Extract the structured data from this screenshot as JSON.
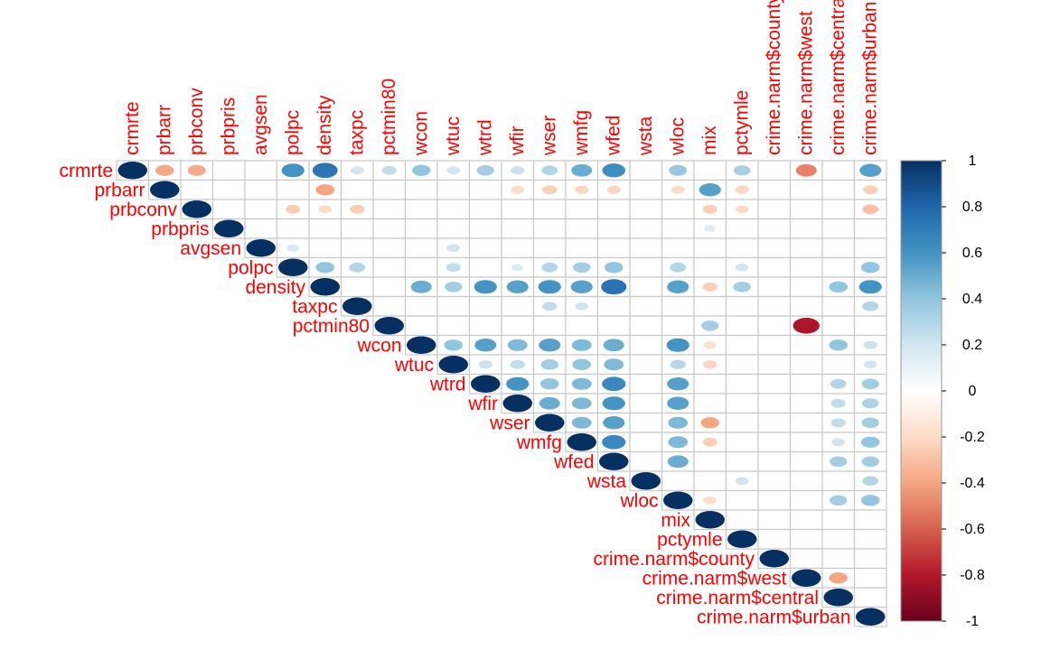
{
  "chart_data": {
    "type": "heatmap",
    "subtype": "correlation-upper-circles",
    "variables": [
      "crmrte",
      "prbarr",
      "prbconv",
      "prbpris",
      "avgsen",
      "polpc",
      "density",
      "taxpc",
      "pctmin80",
      "wcon",
      "wtuc",
      "wtrd",
      "wfir",
      "wser",
      "wmfg",
      "wfed",
      "wsta",
      "wloc",
      "mix",
      "pctymle",
      "crime.narm$county",
      "crime.narm$west",
      "crime.narm$central",
      "crime.narm$urban"
    ],
    "correlations": [
      [
        "crmrte",
        "prbarr",
        -0.39
      ],
      [
        "crmrte",
        "prbconv",
        -0.38
      ],
      [
        "crmrte",
        "polpc",
        0.6
      ],
      [
        "crmrte",
        "density",
        0.73
      ],
      [
        "crmrte",
        "taxpc",
        0.2
      ],
      [
        "crmrte",
        "pctmin80",
        0.25
      ],
      [
        "crmrte",
        "wcon",
        0.4
      ],
      [
        "crmrte",
        "wtuc",
        0.2
      ],
      [
        "crmrte",
        "wtrd",
        0.35
      ],
      [
        "crmrte",
        "wfir",
        0.22
      ],
      [
        "crmrte",
        "wser",
        0.3
      ],
      [
        "crmrte",
        "wmfg",
        0.5
      ],
      [
        "crmrte",
        "wfed",
        0.62
      ],
      [
        "crmrte",
        "wloc",
        0.38
      ],
      [
        "crmrte",
        "pctymle",
        0.33
      ],
      [
        "crmrte",
        "crime.narm$west",
        -0.5
      ],
      [
        "crmrte",
        "crime.narm$urban",
        0.55
      ],
      [
        "prbarr",
        "density",
        -0.4
      ],
      [
        "prbarr",
        "wfir",
        -0.2
      ],
      [
        "prbarr",
        "wser",
        -0.25
      ],
      [
        "prbarr",
        "wmfg",
        -0.22
      ],
      [
        "prbarr",
        "wfed",
        -0.22
      ],
      [
        "prbarr",
        "wloc",
        -0.2
      ],
      [
        "prbarr",
        "mix",
        0.55
      ],
      [
        "prbarr",
        "pctymle",
        -0.22
      ],
      [
        "prbarr",
        "crime.narm$urban",
        -0.25
      ],
      [
        "prbconv",
        "polpc",
        -0.25
      ],
      [
        "prbconv",
        "density",
        -0.2
      ],
      [
        "prbconv",
        "taxpc",
        -0.25
      ],
      [
        "prbconv",
        "mix",
        -0.25
      ],
      [
        "prbconv",
        "pctymle",
        -0.2
      ],
      [
        "prbconv",
        "crime.narm$urban",
        -0.3
      ],
      [
        "prbpris",
        "mix",
        0.15
      ],
      [
        "avgsen",
        "polpc",
        0.17
      ],
      [
        "avgsen",
        "wtuc",
        0.2
      ],
      [
        "polpc",
        "density",
        0.4
      ],
      [
        "polpc",
        "taxpc",
        0.3
      ],
      [
        "polpc",
        "wtuc",
        0.25
      ],
      [
        "polpc",
        "wfir",
        0.15
      ],
      [
        "polpc",
        "wser",
        0.3
      ],
      [
        "polpc",
        "wmfg",
        0.35
      ],
      [
        "polpc",
        "wfed",
        0.4
      ],
      [
        "polpc",
        "wloc",
        0.3
      ],
      [
        "polpc",
        "pctymle",
        0.2
      ],
      [
        "polpc",
        "crime.narm$urban",
        0.4
      ],
      [
        "density",
        "wcon",
        0.5
      ],
      [
        "density",
        "wtuc",
        0.35
      ],
      [
        "density",
        "wtrd",
        0.6
      ],
      [
        "density",
        "wfir",
        0.55
      ],
      [
        "density",
        "wser",
        0.6
      ],
      [
        "density",
        "wmfg",
        0.55
      ],
      [
        "density",
        "wfed",
        0.75
      ],
      [
        "density",
        "wloc",
        0.55
      ],
      [
        "density",
        "mix",
        -0.25
      ],
      [
        "density",
        "pctymle",
        0.35
      ],
      [
        "density",
        "crime.narm$central",
        0.4
      ],
      [
        "density",
        "crime.narm$urban",
        0.6
      ],
      [
        "taxpc",
        "wser",
        0.25
      ],
      [
        "taxpc",
        "wmfg",
        0.2
      ],
      [
        "taxpc",
        "crime.narm$urban",
        0.3
      ],
      [
        "pctmin80",
        "mix",
        0.35
      ],
      [
        "pctmin80",
        "crime.narm$west",
        -0.82
      ],
      [
        "wcon",
        "wtuc",
        0.4
      ],
      [
        "wcon",
        "wtrd",
        0.55
      ],
      [
        "wcon",
        "wfir",
        0.45
      ],
      [
        "wcon",
        "wser",
        0.55
      ],
      [
        "wcon",
        "wmfg",
        0.45
      ],
      [
        "wcon",
        "wfed",
        0.5
      ],
      [
        "wcon",
        "wloc",
        0.6
      ],
      [
        "wcon",
        "mix",
        -0.18
      ],
      [
        "wcon",
        "crime.narm$central",
        0.4
      ],
      [
        "wcon",
        "crime.narm$urban",
        0.22
      ],
      [
        "wtuc",
        "wtrd",
        0.22
      ],
      [
        "wtuc",
        "wfir",
        0.25
      ],
      [
        "wtuc",
        "wser",
        0.35
      ],
      [
        "wtuc",
        "wmfg",
        0.4
      ],
      [
        "wtuc",
        "wfed",
        0.45
      ],
      [
        "wtuc",
        "wloc",
        0.28
      ],
      [
        "wtuc",
        "mix",
        -0.22
      ],
      [
        "wtuc",
        "crime.narm$urban",
        0.2
      ],
      [
        "wtrd",
        "wfir",
        0.6
      ],
      [
        "wtrd",
        "wser",
        0.4
      ],
      [
        "wtrd",
        "wmfg",
        0.45
      ],
      [
        "wtrd",
        "wfed",
        0.65
      ],
      [
        "wtrd",
        "wloc",
        0.55
      ],
      [
        "wtrd",
        "crime.narm$central",
        0.3
      ],
      [
        "wtrd",
        "crime.narm$urban",
        0.35
      ],
      [
        "wfir",
        "wser",
        0.5
      ],
      [
        "wfir",
        "wmfg",
        0.45
      ],
      [
        "wfir",
        "wfed",
        0.6
      ],
      [
        "wfir",
        "wloc",
        0.55
      ],
      [
        "wfir",
        "crime.narm$central",
        0.25
      ],
      [
        "wfir",
        "crime.narm$urban",
        0.32
      ],
      [
        "wser",
        "wmfg",
        0.45
      ],
      [
        "wser",
        "wfed",
        0.55
      ],
      [
        "wser",
        "wloc",
        0.45
      ],
      [
        "wser",
        "mix",
        -0.4
      ],
      [
        "wser",
        "crime.narm$central",
        0.25
      ],
      [
        "wser",
        "crime.narm$urban",
        0.35
      ],
      [
        "wmfg",
        "wfed",
        0.65
      ],
      [
        "wmfg",
        "wloc",
        0.45
      ],
      [
        "wmfg",
        "mix",
        -0.25
      ],
      [
        "wmfg",
        "crime.narm$central",
        0.2
      ],
      [
        "wmfg",
        "crime.narm$urban",
        0.4
      ],
      [
        "wfed",
        "wloc",
        0.5
      ],
      [
        "wfed",
        "crime.narm$central",
        0.35
      ],
      [
        "wfed",
        "crime.narm$urban",
        0.35
      ],
      [
        "wsta",
        "pctymle",
        0.2
      ],
      [
        "wsta",
        "crime.narm$urban",
        0.3
      ],
      [
        "wloc",
        "mix",
        -0.2
      ],
      [
        "wloc",
        "crime.narm$central",
        0.35
      ],
      [
        "wloc",
        "crime.narm$urban",
        0.4
      ],
      [
        "crime.narm$west",
        "crime.narm$central",
        -0.4
      ]
    ],
    "scale": {
      "ticks": [
        "1",
        "0.8",
        "0.6",
        "0.4",
        "0.2",
        "0",
        "-0.2",
        "-0.4",
        "-0.6",
        "-0.8",
        "-1"
      ],
      "range": [
        -1,
        1
      ],
      "colors": [
        "#67001F",
        "#B2182B",
        "#D6604D",
        "#F4A582",
        "#FDDBC7",
        "#FFFFFF",
        "#D1E5F0",
        "#92C5DE",
        "#4393C3",
        "#2166AC",
        "#053061"
      ]
    },
    "grid": true,
    "label_color": "#FF0000"
  }
}
